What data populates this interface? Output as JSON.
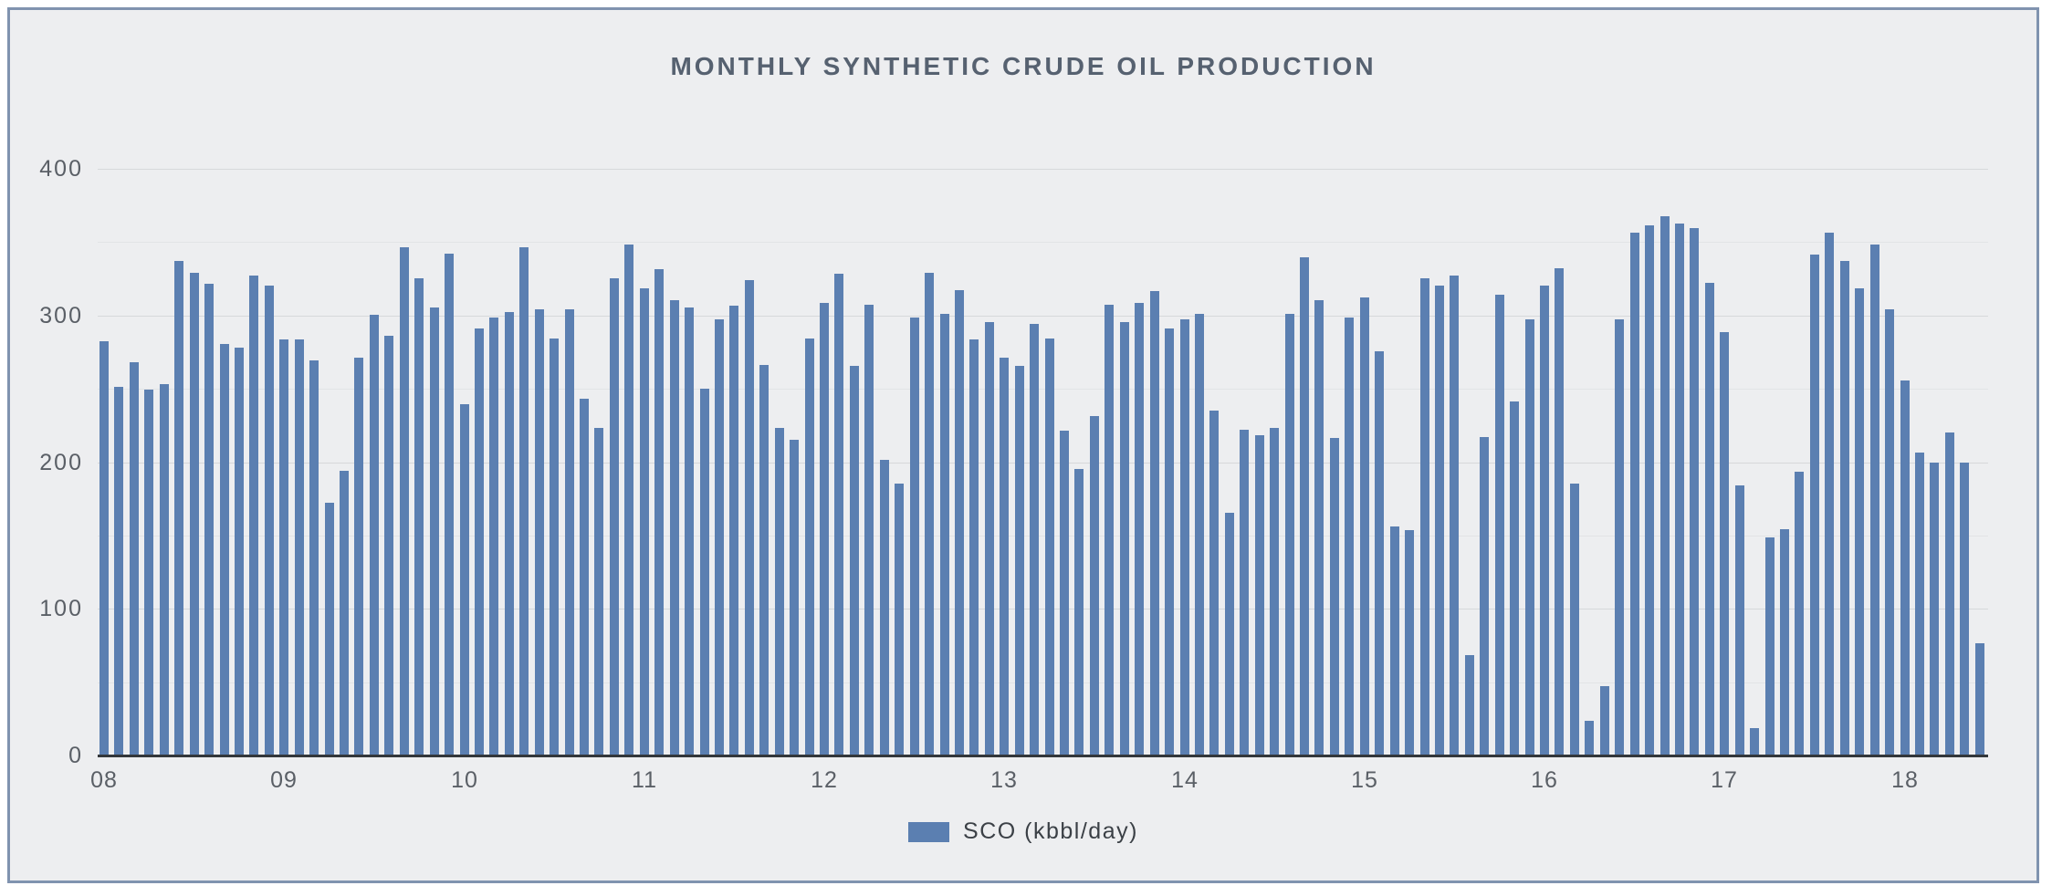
{
  "title": "MONTHLY SYNTHETIC CRUDE OIL PRODUCTION",
  "legend": {
    "label": "SCO (kbbl/day)"
  },
  "colors": {
    "page": "#ffffff",
    "background": "#edeef0",
    "frame_border": "#8093af",
    "bar": "#5b7fb1",
    "grid_major": "#d6d8da",
    "grid_minor": "#e2e4e6",
    "axis_line": "#33373b",
    "tick_text": "#5a5f66",
    "title_text": "#566170",
    "legend_text": "#3b4046"
  },
  "chart_data": {
    "type": "bar",
    "title": "MONTHLY SYNTHETIC CRUDE OIL PRODUCTION",
    "xlabel": "",
    "ylabel": "",
    "legend_entries": [
      "SCO (kbbl/day)"
    ],
    "legend_position": "bottom-center",
    "grid": "horizontal lines, minor every 50, major labeled every 100",
    "ylim": [
      0,
      400
    ],
    "y_axis": {
      "min": 0,
      "max": 400,
      "major_step": 100,
      "minor_step": 50,
      "tick_labels": [
        "0",
        "100",
        "200",
        "300",
        "400"
      ]
    },
    "x_axis": {
      "tick_labels": [
        "08",
        "09",
        "10",
        "11",
        "12",
        "13",
        "14",
        "15",
        "16",
        "17",
        "18"
      ],
      "tick_bar_indices": [
        0,
        12,
        24,
        36,
        48,
        60,
        72,
        84,
        96,
        108,
        120
      ]
    },
    "months": [
      "2008-01",
      "2008-02",
      "2008-03",
      "2008-04",
      "2008-05",
      "2008-06",
      "2008-07",
      "2008-08",
      "2008-09",
      "2008-10",
      "2008-11",
      "2008-12",
      "2009-01",
      "2009-02",
      "2009-03",
      "2009-04",
      "2009-05",
      "2009-06",
      "2009-07",
      "2009-08",
      "2009-09",
      "2009-10",
      "2009-11",
      "2009-12",
      "2010-01",
      "2010-02",
      "2010-03",
      "2010-04",
      "2010-05",
      "2010-06",
      "2010-07",
      "2010-08",
      "2010-09",
      "2010-10",
      "2010-11",
      "2010-12",
      "2011-01",
      "2011-02",
      "2011-03",
      "2011-04",
      "2011-05",
      "2011-06",
      "2011-07",
      "2011-08",
      "2011-09",
      "2011-10",
      "2011-11",
      "2011-12",
      "2012-01",
      "2012-02",
      "2012-03",
      "2012-04",
      "2012-05",
      "2012-06",
      "2012-07",
      "2012-08",
      "2012-09",
      "2012-10",
      "2012-11",
      "2012-12",
      "2013-01",
      "2013-02",
      "2013-03",
      "2013-04",
      "2013-05",
      "2013-06",
      "2013-07",
      "2013-08",
      "2013-09",
      "2013-10",
      "2013-11",
      "2013-12",
      "2014-01",
      "2014-02",
      "2014-03",
      "2014-04",
      "2014-05",
      "2014-06",
      "2014-07",
      "2014-08",
      "2014-09",
      "2014-10",
      "2014-11",
      "2014-12",
      "2015-01",
      "2015-02",
      "2015-03",
      "2015-04",
      "2015-05",
      "2015-06",
      "2015-07",
      "2015-08",
      "2015-09",
      "2015-10",
      "2015-11",
      "2015-12",
      "2016-01",
      "2016-02",
      "2016-03",
      "2016-04",
      "2016-05",
      "2016-06",
      "2016-07",
      "2016-08",
      "2016-09",
      "2016-10",
      "2016-11",
      "2016-12",
      "2017-01",
      "2017-02",
      "2017-03",
      "2017-04",
      "2017-05",
      "2017-06",
      "2017-07",
      "2017-08",
      "2017-09",
      "2017-10",
      "2017-11",
      "2017-12",
      "2018-01",
      "2018-02",
      "2018-03",
      "2018-04",
      "2018-05",
      "2018-06"
    ],
    "values": [
      283,
      252,
      269,
      250,
      254,
      338,
      330,
      322,
      281,
      279,
      328,
      321,
      284,
      284,
      270,
      173,
      195,
      272,
      301,
      287,
      347,
      326,
      306,
      343,
      240,
      292,
      299,
      303,
      347,
      305,
      285,
      305,
      244,
      224,
      326,
      349,
      319,
      332,
      311,
      306,
      251,
      298,
      307,
      325,
      267,
      224,
      216,
      285,
      309,
      329,
      266,
      308,
      202,
      186,
      299,
      330,
      302,
      318,
      284,
      296,
      272,
      266,
      295,
      285,
      222,
      196,
      232,
      308,
      296,
      309,
      317,
      292,
      298,
      302,
      236,
      166,
      223,
      219,
      224,
      302,
      340,
      311,
      217,
      299,
      313,
      276,
      157,
      154,
      326,
      321,
      328,
      69,
      218,
      315,
      242,
      298,
      321,
      333,
      186,
      24,
      48,
      298,
      357,
      362,
      368,
      363,
      360,
      323,
      289,
      185,
      19,
      149,
      155,
      194,
      342,
      357,
      338,
      319,
      349,
      305,
      256,
      207,
      200,
      221,
      200,
      77
    ]
  }
}
